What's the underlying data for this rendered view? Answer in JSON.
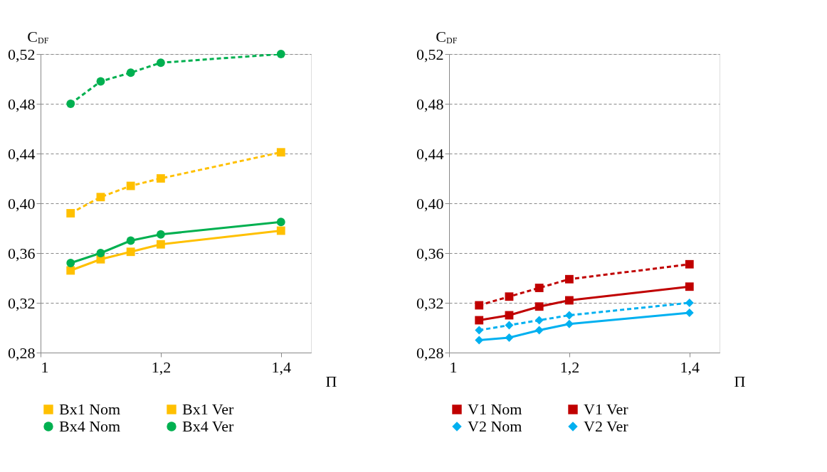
{
  "chart_data": [
    {
      "type": "line",
      "xlabel": "Π",
      "ylabel": "C$_{DF}$",
      "xlim": [
        1,
        1.45
      ],
      "xticks": [
        {
          "value": 1,
          "label": "1"
        },
        {
          "value": 1.2,
          "label": "1,2"
        },
        {
          "value": 1.4,
          "label": "1,4"
        }
      ],
      "ylim": [
        0.28,
        0.52
      ],
      "yticks": [
        {
          "value": 0.28,
          "label": "0,28"
        },
        {
          "value": 0.32,
          "label": "0,32"
        },
        {
          "value": 0.36,
          "label": "0,36"
        },
        {
          "value": 0.4,
          "label": "0,40"
        },
        {
          "value": 0.44,
          "label": "0,44"
        },
        {
          "value": 0.48,
          "label": "0,48"
        },
        {
          "value": 0.52,
          "label": "0,52"
        }
      ],
      "grid": "y",
      "legend": "bottom",
      "x": [
        1.05,
        1.1,
        1.15,
        1.2,
        1.4
      ],
      "series": [
        {
          "name": "Bx1 Nom",
          "color": "#ffc000",
          "marker": "square",
          "line_style": "solid",
          "values": [
            0.346,
            0.355,
            0.361,
            0.367,
            0.378
          ]
        },
        {
          "name": "Bx1 Ver",
          "color": "#ffc000",
          "marker": "square",
          "line_style": "dashed",
          "values": [
            0.392,
            0.405,
            0.414,
            0.42,
            0.441
          ]
        },
        {
          "name": "Bx4 Nom",
          "color": "#00b050",
          "marker": "circle",
          "line_style": "solid",
          "values": [
            0.352,
            0.36,
            0.37,
            0.375,
            0.385
          ]
        },
        {
          "name": "Bx4 Ver",
          "color": "#00b050",
          "marker": "circle",
          "line_style": "dashed",
          "values": [
            0.48,
            0.498,
            0.505,
            0.513,
            0.52
          ]
        }
      ]
    },
    {
      "type": "line",
      "xlabel": "Π",
      "ylabel": "C$_{DF}$",
      "xlim": [
        1,
        1.45
      ],
      "xticks": [
        {
          "value": 1,
          "label": "1"
        },
        {
          "value": 1.2,
          "label": "1,2"
        },
        {
          "value": 1.4,
          "label": "1,4"
        }
      ],
      "ylim": [
        0.28,
        0.52
      ],
      "yticks": [
        {
          "value": 0.28,
          "label": "0,28"
        },
        {
          "value": 0.32,
          "label": "0,32"
        },
        {
          "value": 0.36,
          "label": "0,36"
        },
        {
          "value": 0.4,
          "label": "0,40"
        },
        {
          "value": 0.44,
          "label": "0,44"
        },
        {
          "value": 0.48,
          "label": "0,48"
        },
        {
          "value": 0.52,
          "label": "0,52"
        }
      ],
      "grid": "y",
      "legend": "bottom",
      "x": [
        1.05,
        1.1,
        1.15,
        1.2,
        1.4
      ],
      "series": [
        {
          "name": "V1 Nom",
          "color": "#c00000",
          "marker": "square",
          "line_style": "solid",
          "values": [
            0.306,
            0.31,
            0.317,
            0.322,
            0.333
          ]
        },
        {
          "name": "V1 Ver",
          "color": "#c00000",
          "marker": "square",
          "line_style": "dashed",
          "values": [
            0.318,
            0.325,
            0.332,
            0.339,
            0.351
          ]
        },
        {
          "name": "V2 Nom",
          "color": "#00b0f0",
          "marker": "diamond",
          "line_style": "solid",
          "values": [
            0.29,
            0.292,
            0.298,
            0.303,
            0.312
          ]
        },
        {
          "name": "V2 Ver",
          "color": "#00b0f0",
          "marker": "diamond",
          "line_style": "dashed",
          "values": [
            0.298,
            0.302,
            0.306,
            0.31,
            0.32
          ]
        }
      ]
    }
  ]
}
